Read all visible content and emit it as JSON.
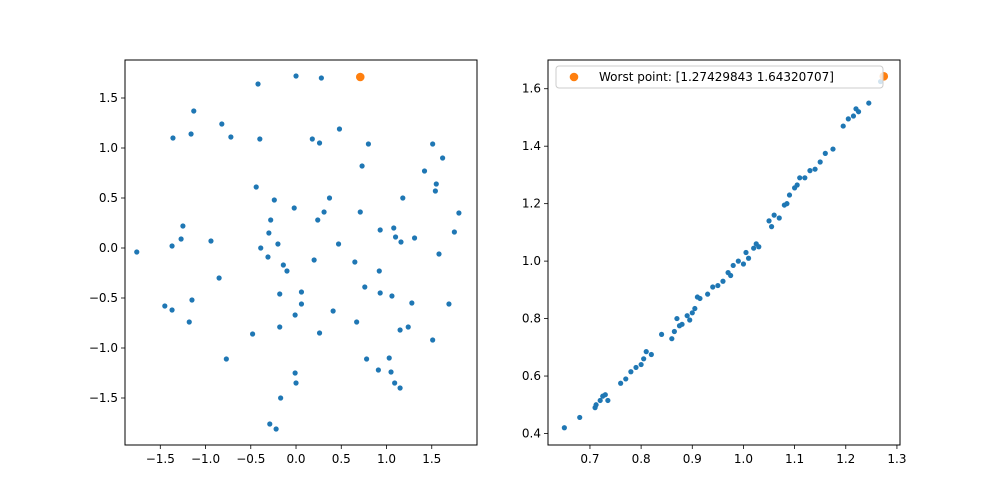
{
  "colors": {
    "series": "#1f77b4",
    "highlight": "#ff7f0e",
    "axis": "#000000"
  },
  "chart_data": [
    {
      "type": "scatter",
      "title": "",
      "xlabel": "",
      "ylabel": "",
      "xlim": [
        -1.89,
        2.0
      ],
      "ylim": [
        -1.97,
        1.88
      ],
      "xticks": [
        -1.5,
        -1.0,
        -0.5,
        0.0,
        0.5,
        1.0,
        1.5
      ],
      "xtick_labels": [
        "−1.5",
        "−1.0",
        "−0.5",
        "0.0",
        "0.5",
        "1.0",
        "1.5"
      ],
      "yticks": [
        -1.5,
        -1.0,
        -0.5,
        0.0,
        0.5,
        1.0,
        1.5
      ],
      "ytick_labels": [
        "−1.5",
        "−1.0",
        "−0.5",
        "0.0",
        "0.5",
        "1.0",
        "1.5"
      ],
      "grid": false,
      "series": [
        {
          "points": [
            [
              -1.76,
              -0.04
            ],
            [
              -1.45,
              -0.58
            ],
            [
              -1.37,
              -0.62
            ],
            [
              -1.37,
              0.02
            ],
            [
              -1.36,
              1.1
            ],
            [
              -1.27,
              0.09
            ],
            [
              -1.25,
              0.22
            ],
            [
              -1.18,
              -0.74
            ],
            [
              -1.16,
              1.14
            ],
            [
              -1.15,
              -0.52
            ],
            [
              -1.13,
              1.37
            ],
            [
              -0.94,
              0.07
            ],
            [
              -0.85,
              -0.3
            ],
            [
              -0.82,
              1.24
            ],
            [
              -0.77,
              -1.11
            ],
            [
              -0.72,
              1.11
            ],
            [
              -0.48,
              -0.86
            ],
            [
              -0.44,
              0.61
            ],
            [
              -0.42,
              1.64
            ],
            [
              -0.4,
              1.09
            ],
            [
              -0.39,
              0.0
            ],
            [
              -0.31,
              -0.09
            ],
            [
              -0.3,
              0.15
            ],
            [
              -0.28,
              0.28
            ],
            [
              -0.29,
              -1.76
            ],
            [
              -0.24,
              0.48
            ],
            [
              -0.22,
              -1.81
            ],
            [
              -0.2,
              0.04
            ],
            [
              -0.18,
              -0.46
            ],
            [
              -0.18,
              -0.79
            ],
            [
              -0.17,
              -1.5
            ],
            [
              -0.14,
              -0.17
            ],
            [
              -0.1,
              -0.23
            ],
            [
              -0.02,
              0.4
            ],
            [
              -0.01,
              -1.25
            ],
            [
              -0.01,
              -0.67
            ],
            [
              0.0,
              1.72
            ],
            [
              0.0,
              -1.35
            ],
            [
              0.06,
              -0.44
            ],
            [
              0.06,
              -0.56
            ],
            [
              0.18,
              1.09
            ],
            [
              0.2,
              -0.12
            ],
            [
              0.24,
              0.28
            ],
            [
              0.26,
              1.05
            ],
            [
              0.26,
              -0.85
            ],
            [
              0.28,
              1.7
            ],
            [
              0.31,
              0.36
            ],
            [
              0.37,
              0.5
            ],
            [
              0.41,
              -0.63
            ],
            [
              0.47,
              0.04
            ],
            [
              0.48,
              1.19
            ],
            [
              0.65,
              -0.14
            ],
            [
              0.67,
              -0.74
            ],
            [
              0.71,
              0.36
            ],
            [
              0.73,
              0.82
            ],
            [
              0.76,
              -0.39
            ],
            [
              0.78,
              -1.11
            ],
            [
              0.8,
              1.04
            ],
            [
              0.91,
              -1.22
            ],
            [
              0.92,
              -0.23
            ],
            [
              0.93,
              0.18
            ],
            [
              0.93,
              -0.45
            ],
            [
              1.03,
              -1.1
            ],
            [
              1.05,
              -1.24
            ],
            [
              1.06,
              -0.48
            ],
            [
              1.08,
              0.2
            ],
            [
              1.09,
              -1.35
            ],
            [
              1.1,
              0.11
            ],
            [
              1.15,
              -1.4
            ],
            [
              1.15,
              -0.82
            ],
            [
              1.16,
              0.06
            ],
            [
              1.18,
              0.5
            ],
            [
              1.24,
              -0.79
            ],
            [
              1.28,
              -0.55
            ],
            [
              1.31,
              0.1
            ],
            [
              1.42,
              0.77
            ],
            [
              1.51,
              1.04
            ],
            [
              1.51,
              -0.92
            ],
            [
              1.54,
              0.57
            ],
            [
              1.55,
              0.64
            ],
            [
              1.58,
              -0.06
            ],
            [
              1.62,
              0.9
            ],
            [
              1.69,
              -0.56
            ],
            [
              1.75,
              0.16
            ],
            [
              1.8,
              0.35
            ]
          ]
        }
      ],
      "highlight": {
        "x": 0.71,
        "y": 1.71
      }
    },
    {
      "type": "scatter",
      "title": "",
      "xlabel": "",
      "ylabel": "",
      "xlim": [
        0.618,
        1.306
      ],
      "ylim": [
        0.36,
        1.7
      ],
      "xticks": [
        0.7,
        0.8,
        0.9,
        1.0,
        1.1,
        1.2,
        1.3
      ],
      "xtick_labels": [
        "0.7",
        "0.8",
        "0.9",
        "1.0",
        "1.1",
        "1.2",
        "1.3"
      ],
      "yticks": [
        0.4,
        0.6,
        0.8,
        1.0,
        1.2,
        1.4,
        1.6
      ],
      "ytick_labels": [
        "0.4",
        "0.6",
        "0.8",
        "1.0",
        "1.2",
        "1.4",
        "1.6"
      ],
      "grid": false,
      "legend_placement": "upper-left",
      "legend_label": "Worst point: [1.27429843 1.64320707]",
      "series": [
        {
          "points": [
            [
              0.65,
              0.42
            ],
            [
              0.68,
              0.456
            ],
            [
              0.71,
              0.49
            ],
            [
              0.712,
              0.5
            ],
            [
              0.72,
              0.515
            ],
            [
              0.725,
              0.53
            ],
            [
              0.73,
              0.535
            ],
            [
              0.735,
              0.515
            ],
            [
              0.76,
              0.575
            ],
            [
              0.77,
              0.59
            ],
            [
              0.78,
              0.615
            ],
            [
              0.79,
              0.63
            ],
            [
              0.8,
              0.64
            ],
            [
              0.805,
              0.66
            ],
            [
              0.81,
              0.685
            ],
            [
              0.82,
              0.675
            ],
            [
              0.84,
              0.745
            ],
            [
              0.86,
              0.73
            ],
            [
              0.865,
              0.755
            ],
            [
              0.87,
              0.8
            ],
            [
              0.875,
              0.775
            ],
            [
              0.88,
              0.78
            ],
            [
              0.89,
              0.81
            ],
            [
              0.895,
              0.795
            ],
            [
              0.9,
              0.82
            ],
            [
              0.905,
              0.835
            ],
            [
              0.91,
              0.875
            ],
            [
              0.915,
              0.87
            ],
            [
              0.93,
              0.885
            ],
            [
              0.94,
              0.91
            ],
            [
              0.95,
              0.915
            ],
            [
              0.96,
              0.93
            ],
            [
              0.97,
              0.96
            ],
            [
              0.975,
              0.95
            ],
            [
              0.98,
              0.985
            ],
            [
              0.99,
              1.0
            ],
            [
              1.0,
              0.99
            ],
            [
              1.005,
              1.03
            ],
            [
              1.01,
              1.01
            ],
            [
              1.02,
              1.045
            ],
            [
              1.025,
              1.06
            ],
            [
              1.03,
              1.05
            ],
            [
              1.05,
              1.14
            ],
            [
              1.055,
              1.12
            ],
            [
              1.06,
              1.16
            ],
            [
              1.07,
              1.15
            ],
            [
              1.08,
              1.195
            ],
            [
              1.085,
              1.2
            ],
            [
              1.09,
              1.23
            ],
            [
              1.1,
              1.255
            ],
            [
              1.105,
              1.265
            ],
            [
              1.11,
              1.29
            ],
            [
              1.12,
              1.29
            ],
            [
              1.13,
              1.315
            ],
            [
              1.14,
              1.32
            ],
            [
              1.15,
              1.345
            ],
            [
              1.16,
              1.375
            ],
            [
              1.175,
              1.39
            ],
            [
              1.195,
              1.47
            ],
            [
              1.205,
              1.495
            ],
            [
              1.215,
              1.505
            ],
            [
              1.22,
              1.53
            ],
            [
              1.225,
              1.52
            ],
            [
              1.245,
              1.55
            ],
            [
              1.268,
              1.625
            ]
          ]
        }
      ],
      "highlight": {
        "x": 1.27429843,
        "y": 1.64320707
      }
    }
  ]
}
